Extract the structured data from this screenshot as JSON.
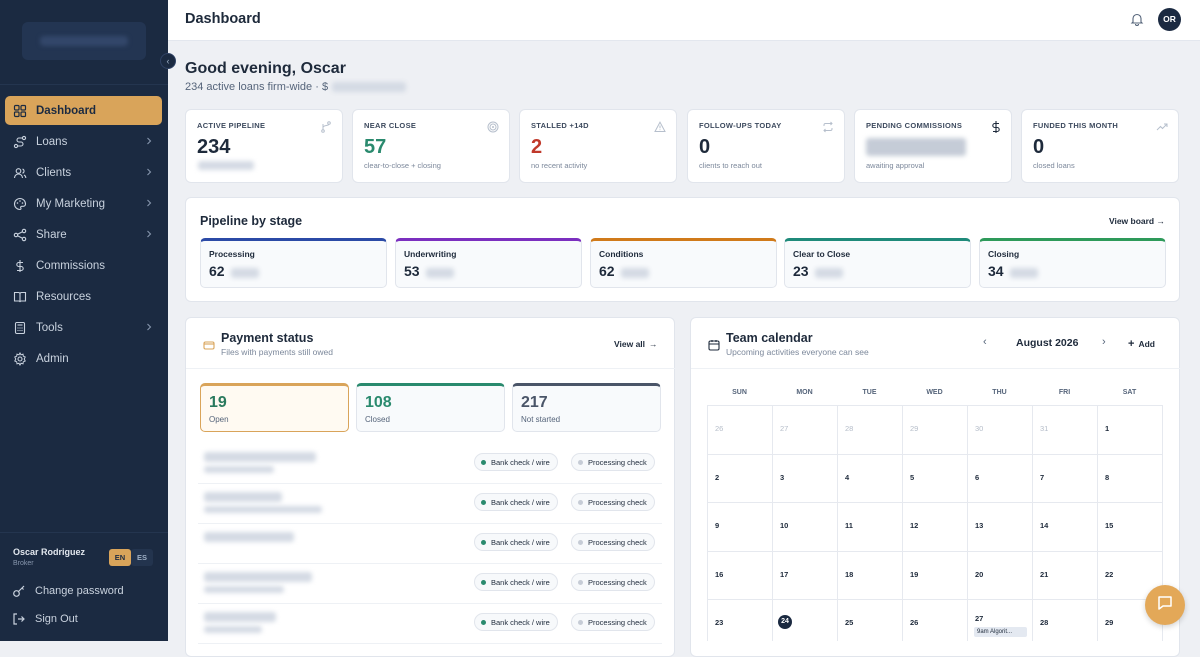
{
  "header": {
    "title": "Dashboard",
    "avatar_initials": "OR"
  },
  "sidebar": {
    "items": [
      {
        "label": "Dashboard",
        "icon": "grid-icon",
        "active": true,
        "chevron": false
      },
      {
        "label": "Loans",
        "icon": "route-icon",
        "active": false,
        "chevron": true
      },
      {
        "label": "Clients",
        "icon": "users-icon",
        "active": false,
        "chevron": true
      },
      {
        "label": "My Marketing",
        "icon": "palette-icon",
        "active": false,
        "chevron": true
      },
      {
        "label": "Share",
        "icon": "share-icon",
        "active": false,
        "chevron": true
      },
      {
        "label": "Commissions",
        "icon": "dollar-icon",
        "active": false,
        "chevron": false
      },
      {
        "label": "Resources",
        "icon": "book-icon",
        "active": false,
        "chevron": false
      },
      {
        "label": "Tools",
        "icon": "calculator-icon",
        "active": false,
        "chevron": true
      },
      {
        "label": "Admin",
        "icon": "gear-icon",
        "active": false,
        "chevron": false
      }
    ],
    "user": {
      "name": "Oscar Rodriguez",
      "role": "Broker"
    },
    "lang": {
      "en": "EN",
      "es": "ES"
    },
    "change_password": "Change password",
    "sign_out": "Sign Out"
  },
  "greeting": {
    "title": "Good evening, Oscar",
    "subtitle": "234 active loans firm-wide · $"
  },
  "kpis": [
    {
      "label": "ACTIVE PIPELINE",
      "value": "234",
      "sub": "",
      "color": "#1e2a3b",
      "icon": "branch-icon"
    },
    {
      "label": "NEAR CLOSE",
      "value": "57",
      "sub": "clear-to-close + closing",
      "color": "#2a8a6e",
      "icon": "target-icon"
    },
    {
      "label": "STALLED +14D",
      "value": "2",
      "sub": "no recent activity",
      "color": "#c0392b",
      "icon": "warning-icon"
    },
    {
      "label": "FOLLOW-UPS TODAY",
      "value": "0",
      "sub": "clients to reach out",
      "color": "#1e2a3b",
      "icon": "repeat-icon"
    },
    {
      "label": "PENDING COMMISSIONS",
      "value": "",
      "sub": "awaiting approval",
      "color": "#1e2a3b",
      "icon": "dollar-icon"
    },
    {
      "label": "FUNDED THIS MONTH",
      "value": "0",
      "sub": "closed loans",
      "color": "#1e2a3b",
      "icon": "trend-icon"
    }
  ],
  "pipeline": {
    "title": "Pipeline by stage",
    "view_board": "View board →",
    "stages": [
      {
        "name": "Processing",
        "count": "62",
        "color": "#2b4aa6"
      },
      {
        "name": "Underwriting",
        "count": "53",
        "color": "#7b2fbf"
      },
      {
        "name": "Conditions",
        "count": "62",
        "color": "#d07a1a"
      },
      {
        "name": "Clear to Close",
        "count": "23",
        "color": "#1f8a7a"
      },
      {
        "name": "Closing",
        "count": "34",
        "color": "#2e9a5a"
      }
    ]
  },
  "payment": {
    "title": "Payment status",
    "subtitle": "Files with payments still owed",
    "view_all": "View all",
    "tabs": [
      {
        "num": "19",
        "label": "Open",
        "color": "#d9a45a",
        "num_color": "#2a7a5e"
      },
      {
        "num": "108",
        "label": "Closed",
        "color": "#2a8a6e",
        "num_color": "#2a8a6e"
      },
      {
        "num": "217",
        "label": "Not started",
        "color": "#4a5568",
        "num_color": "#4a5568"
      }
    ],
    "rows": [
      {
        "method": "Bank check / wire",
        "status": "Processing check"
      },
      {
        "method": "Bank check / wire",
        "status": "Processing check"
      },
      {
        "method": "Bank check / wire",
        "status": "Processing check"
      },
      {
        "method": "Bank check / wire",
        "status": "Processing check"
      },
      {
        "method": "Bank check / wire",
        "status": "Processing check"
      }
    ]
  },
  "calendar": {
    "title": "Team calendar",
    "subtitle": "Upcoming activities everyone can see",
    "month": "August 2026",
    "add": "Add",
    "weekdays": [
      "SUN",
      "MON",
      "TUE",
      "WED",
      "THU",
      "FRI",
      "SAT"
    ],
    "weeks": [
      [
        "26",
        "27",
        "28",
        "29",
        "30",
        "31",
        "1"
      ],
      [
        "2",
        "3",
        "4",
        "5",
        "6",
        "7",
        "8"
      ],
      [
        "9",
        "10",
        "11",
        "12",
        "13",
        "14",
        "15"
      ],
      [
        "16",
        "17",
        "18",
        "19",
        "20",
        "21",
        "22"
      ],
      [
        "23",
        "24",
        "25",
        "26",
        "27",
        "28",
        "29"
      ]
    ],
    "muted_first_row_count": 6,
    "today": "24",
    "event": {
      "day": "27",
      "label": "9am Algorit..."
    }
  }
}
